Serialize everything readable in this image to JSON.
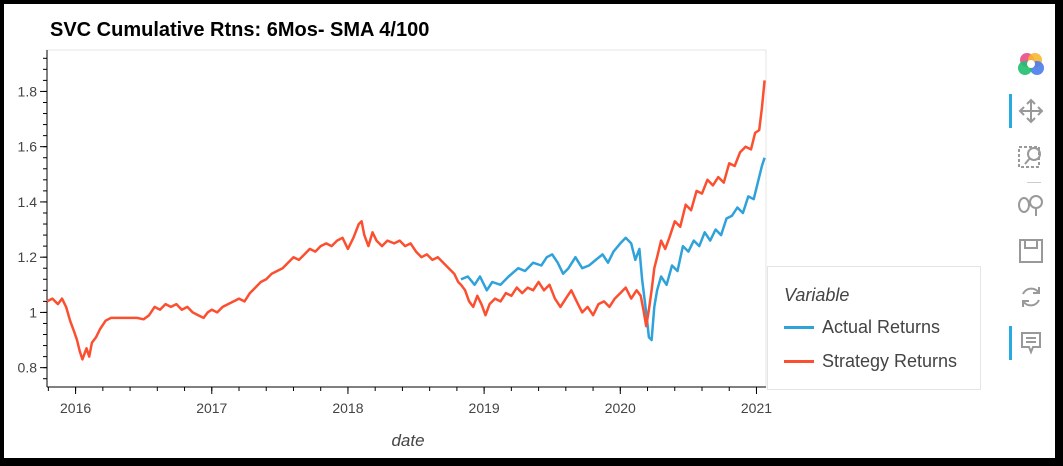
{
  "chart_data": {
    "type": "line",
    "title": "SVC Cumulative Rtns: 6Mos- SMA 4/100",
    "xlabel": "date",
    "ylabel": "",
    "xlim": [
      2015.79,
      2021.07
    ],
    "ylim": [
      0.73,
      1.95
    ],
    "x_ticks": [
      2016,
      2017,
      2018,
      2019,
      2020,
      2021
    ],
    "x_tick_labels": [
      "2016",
      "2017",
      "2018",
      "2019",
      "2020",
      "2021"
    ],
    "y_ticks": [
      0.8,
      1,
      1.2,
      1.4,
      1.6,
      1.8
    ],
    "y_tick_labels": [
      "0.8",
      "1",
      "1.2",
      "1.4",
      "1.6",
      "1.8"
    ],
    "legend": {
      "title": "Variable",
      "position": "right"
    },
    "series": [
      {
        "name": "Actual Returns",
        "color": "#30a2da",
        "points": [
          [
            2018.83,
            1.12
          ],
          [
            2018.88,
            1.13
          ],
          [
            2018.93,
            1.1
          ],
          [
            2018.97,
            1.13
          ],
          [
            2019.02,
            1.08
          ],
          [
            2019.06,
            1.11
          ],
          [
            2019.12,
            1.1
          ],
          [
            2019.18,
            1.13
          ],
          [
            2019.25,
            1.16
          ],
          [
            2019.3,
            1.15
          ],
          [
            2019.36,
            1.18
          ],
          [
            2019.42,
            1.17
          ],
          [
            2019.46,
            1.2
          ],
          [
            2019.5,
            1.21
          ],
          [
            2019.54,
            1.18
          ],
          [
            2019.58,
            1.14
          ],
          [
            2019.62,
            1.16
          ],
          [
            2019.67,
            1.2
          ],
          [
            2019.72,
            1.16
          ],
          [
            2019.77,
            1.17
          ],
          [
            2019.82,
            1.19
          ],
          [
            2019.87,
            1.21
          ],
          [
            2019.91,
            1.18
          ],
          [
            2019.95,
            1.22
          ],
          [
            2020.0,
            1.25
          ],
          [
            2020.04,
            1.27
          ],
          [
            2020.08,
            1.25
          ],
          [
            2020.11,
            1.19
          ],
          [
            2020.14,
            1.23
          ],
          [
            2020.16,
            1.12
          ],
          [
            2020.19,
            1.0
          ],
          [
            2020.21,
            0.91
          ],
          [
            2020.23,
            0.9
          ],
          [
            2020.25,
            1.02
          ],
          [
            2020.27,
            1.08
          ],
          [
            2020.3,
            1.13
          ],
          [
            2020.34,
            1.1
          ],
          [
            2020.38,
            1.17
          ],
          [
            2020.42,
            1.15
          ],
          [
            2020.46,
            1.24
          ],
          [
            2020.5,
            1.22
          ],
          [
            2020.54,
            1.26
          ],
          [
            2020.58,
            1.24
          ],
          [
            2020.62,
            1.29
          ],
          [
            2020.66,
            1.26
          ],
          [
            2020.7,
            1.3
          ],
          [
            2020.74,
            1.28
          ],
          [
            2020.78,
            1.34
          ],
          [
            2020.82,
            1.35
          ],
          [
            2020.86,
            1.38
          ],
          [
            2020.9,
            1.36
          ],
          [
            2020.94,
            1.42
          ],
          [
            2020.98,
            1.41
          ],
          [
            2021.01,
            1.47
          ],
          [
            2021.04,
            1.53
          ],
          [
            2021.06,
            1.56
          ]
        ]
      },
      {
        "name": "Strategy Returns",
        "color": "#fc4f30",
        "points": [
          [
            2015.79,
            1.04
          ],
          [
            2015.83,
            1.05
          ],
          [
            2015.87,
            1.03
          ],
          [
            2015.9,
            1.05
          ],
          [
            2015.93,
            1.02
          ],
          [
            2015.96,
            0.97
          ],
          [
            2015.99,
            0.93
          ],
          [
            2016.01,
            0.9
          ],
          [
            2016.03,
            0.86
          ],
          [
            2016.05,
            0.83
          ],
          [
            2016.08,
            0.87
          ],
          [
            2016.1,
            0.84
          ],
          [
            2016.12,
            0.89
          ],
          [
            2016.15,
            0.91
          ],
          [
            2016.18,
            0.94
          ],
          [
            2016.22,
            0.97
          ],
          [
            2016.26,
            0.98
          ],
          [
            2016.35,
            0.98
          ],
          [
            2016.45,
            0.98
          ],
          [
            2016.5,
            0.975
          ],
          [
            2016.54,
            0.99
          ],
          [
            2016.58,
            1.02
          ],
          [
            2016.62,
            1.01
          ],
          [
            2016.66,
            1.03
          ],
          [
            2016.7,
            1.02
          ],
          [
            2016.74,
            1.03
          ],
          [
            2016.78,
            1.01
          ],
          [
            2016.82,
            1.02
          ],
          [
            2016.86,
            1.0
          ],
          [
            2016.9,
            0.99
          ],
          [
            2016.94,
            0.98
          ],
          [
            2016.97,
            1.0
          ],
          [
            2017.0,
            1.01
          ],
          [
            2017.04,
            1.0
          ],
          [
            2017.08,
            1.02
          ],
          [
            2017.12,
            1.03
          ],
          [
            2017.16,
            1.04
          ],
          [
            2017.2,
            1.05
          ],
          [
            2017.24,
            1.04
          ],
          [
            2017.28,
            1.07
          ],
          [
            2017.32,
            1.09
          ],
          [
            2017.36,
            1.11
          ],
          [
            2017.4,
            1.12
          ],
          [
            2017.44,
            1.14
          ],
          [
            2017.48,
            1.15
          ],
          [
            2017.52,
            1.16
          ],
          [
            2017.56,
            1.18
          ],
          [
            2017.6,
            1.2
          ],
          [
            2017.64,
            1.19
          ],
          [
            2017.68,
            1.21
          ],
          [
            2017.72,
            1.23
          ],
          [
            2017.76,
            1.22
          ],
          [
            2017.8,
            1.24
          ],
          [
            2017.84,
            1.25
          ],
          [
            2017.88,
            1.24
          ],
          [
            2017.92,
            1.26
          ],
          [
            2017.96,
            1.27
          ],
          [
            2018.0,
            1.23
          ],
          [
            2018.04,
            1.27
          ],
          [
            2018.08,
            1.32
          ],
          [
            2018.1,
            1.33
          ],
          [
            2018.12,
            1.28
          ],
          [
            2018.15,
            1.24
          ],
          [
            2018.18,
            1.29
          ],
          [
            2018.21,
            1.26
          ],
          [
            2018.25,
            1.24
          ],
          [
            2018.29,
            1.26
          ],
          [
            2018.34,
            1.25
          ],
          [
            2018.38,
            1.26
          ],
          [
            2018.42,
            1.24
          ],
          [
            2018.46,
            1.25
          ],
          [
            2018.5,
            1.22
          ],
          [
            2018.54,
            1.2
          ],
          [
            2018.58,
            1.21
          ],
          [
            2018.62,
            1.19
          ],
          [
            2018.66,
            1.2
          ],
          [
            2018.7,
            1.18
          ],
          [
            2018.74,
            1.16
          ],
          [
            2018.78,
            1.14
          ],
          [
            2018.81,
            1.11
          ],
          [
            2018.83,
            1.1
          ],
          [
            2018.86,
            1.08
          ],
          [
            2018.89,
            1.04
          ],
          [
            2018.92,
            1.02
          ],
          [
            2018.95,
            1.06
          ],
          [
            2018.98,
            1.03
          ],
          [
            2019.01,
            0.99
          ],
          [
            2019.04,
            1.03
          ],
          [
            2019.08,
            1.05
          ],
          [
            2019.12,
            1.04
          ],
          [
            2019.16,
            1.07
          ],
          [
            2019.2,
            1.06
          ],
          [
            2019.24,
            1.09
          ],
          [
            2019.28,
            1.07
          ],
          [
            2019.32,
            1.09
          ],
          [
            2019.36,
            1.08
          ],
          [
            2019.4,
            1.11
          ],
          [
            2019.44,
            1.08
          ],
          [
            2019.48,
            1.1
          ],
          [
            2019.52,
            1.05
          ],
          [
            2019.56,
            1.02
          ],
          [
            2019.6,
            1.05
          ],
          [
            2019.64,
            1.08
          ],
          [
            2019.68,
            1.04
          ],
          [
            2019.72,
            1.0
          ],
          [
            2019.76,
            1.02
          ],
          [
            2019.8,
            0.99
          ],
          [
            2019.84,
            1.03
          ],
          [
            2019.88,
            1.04
          ],
          [
            2019.92,
            1.02
          ],
          [
            2019.96,
            1.05
          ],
          [
            2020.0,
            1.07
          ],
          [
            2020.04,
            1.09
          ],
          [
            2020.08,
            1.05
          ],
          [
            2020.12,
            1.08
          ],
          [
            2020.15,
            1.06
          ],
          [
            2020.17,
            1.01
          ],
          [
            2020.19,
            0.95
          ],
          [
            2020.21,
            1.01
          ],
          [
            2020.23,
            1.08
          ],
          [
            2020.25,
            1.16
          ],
          [
            2020.27,
            1.2
          ],
          [
            2020.3,
            1.26
          ],
          [
            2020.33,
            1.23
          ],
          [
            2020.36,
            1.27
          ],
          [
            2020.4,
            1.33
          ],
          [
            2020.44,
            1.31
          ],
          [
            2020.48,
            1.39
          ],
          [
            2020.52,
            1.37
          ],
          [
            2020.56,
            1.44
          ],
          [
            2020.6,
            1.43
          ],
          [
            2020.64,
            1.48
          ],
          [
            2020.68,
            1.46
          ],
          [
            2020.72,
            1.49
          ],
          [
            2020.76,
            1.47
          ],
          [
            2020.8,
            1.54
          ],
          [
            2020.84,
            1.53
          ],
          [
            2020.88,
            1.58
          ],
          [
            2020.92,
            1.6
          ],
          [
            2020.96,
            1.59
          ],
          [
            2020.99,
            1.65
          ],
          [
            2021.02,
            1.66
          ],
          [
            2021.04,
            1.74
          ],
          [
            2021.06,
            1.84
          ]
        ]
      }
    ]
  },
  "toolbar": {
    "tools": [
      {
        "name": "bokeh-logo-icon",
        "active": false
      },
      {
        "name": "pan-tool-icon",
        "active": true
      },
      {
        "name": "box-zoom-tool-icon",
        "active": false
      },
      {
        "name": "wheel-zoom-tool-icon",
        "active": false
      },
      {
        "name": "save-tool-icon",
        "active": false
      },
      {
        "name": "reset-tool-icon",
        "active": false
      },
      {
        "name": "hover-tool-icon",
        "active": true
      }
    ]
  }
}
